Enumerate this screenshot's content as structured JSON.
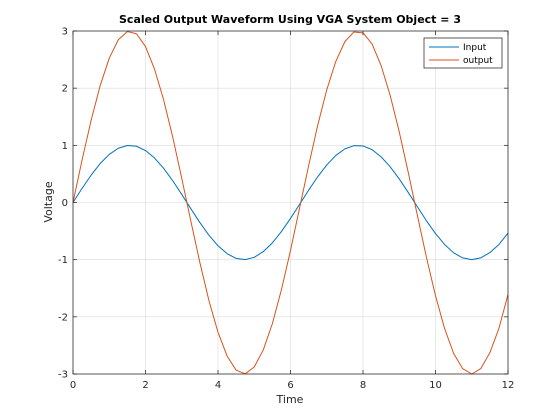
{
  "chart_data": {
    "type": "line",
    "title": "Scaled Output Waveform Using VGA System Object = 3",
    "xlabel": "Time",
    "ylabel": "Voltage",
    "xlim": [
      0,
      12
    ],
    "ylim": [
      -3,
      3
    ],
    "xticks": [
      0,
      2,
      4,
      6,
      8,
      10,
      12
    ],
    "yticks": [
      -3,
      -2,
      -1,
      0,
      1,
      2,
      3
    ],
    "grid": true,
    "legend_position": "top-right",
    "x": [
      0,
      0.25,
      0.5,
      0.75,
      1,
      1.25,
      1.5,
      1.75,
      2,
      2.25,
      2.5,
      2.75,
      3,
      3.25,
      3.5,
      3.75,
      4,
      4.25,
      4.5,
      4.75,
      5,
      5.25,
      5.5,
      5.75,
      6,
      6.25,
      6.5,
      6.75,
      7,
      7.25,
      7.5,
      7.75,
      8,
      8.25,
      8.5,
      8.75,
      9,
      9.25,
      9.5,
      9.75,
      10,
      10.25,
      10.5,
      10.75,
      11,
      11.25,
      11.5,
      11.75,
      12
    ],
    "series": [
      {
        "name": "Input",
        "color": "#0072bd",
        "values": [
          0,
          0.247,
          0.479,
          0.682,
          0.841,
          0.949,
          0.997,
          0.984,
          0.909,
          0.778,
          0.598,
          0.382,
          0.141,
          -0.108,
          -0.351,
          -0.572,
          -0.757,
          -0.895,
          -0.978,
          -0.999,
          -0.959,
          -0.859,
          -0.706,
          -0.508,
          -0.279,
          -0.033,
          0.215,
          0.45,
          0.657,
          0.823,
          0.938,
          0.994,
          0.989,
          0.925,
          0.798,
          0.624,
          0.412,
          0.174,
          -0.075,
          -0.32,
          -0.544,
          -0.734,
          -0.88,
          -0.969,
          -1.0,
          -0.968,
          -0.876,
          -0.734,
          -0.537
        ]
      },
      {
        "name": "output",
        "color": "#d95319",
        "values": [
          0,
          0.742,
          1.438,
          2.045,
          2.524,
          2.847,
          2.992,
          2.952,
          2.728,
          2.333,
          1.795,
          1.147,
          0.423,
          -0.324,
          -1.052,
          -1.716,
          -2.27,
          -2.685,
          -2.933,
          -2.997,
          -2.877,
          -2.577,
          -2.119,
          -1.525,
          -0.838,
          -0.099,
          0.644,
          1.349,
          1.971,
          2.468,
          2.814,
          2.983,
          2.968,
          2.774,
          2.394,
          1.871,
          1.236,
          0.522,
          -0.225,
          -0.959,
          -1.632,
          -2.203,
          -2.639,
          -2.908,
          -3.0,
          -2.905,
          -2.627,
          -2.201,
          -1.61
        ]
      }
    ]
  }
}
